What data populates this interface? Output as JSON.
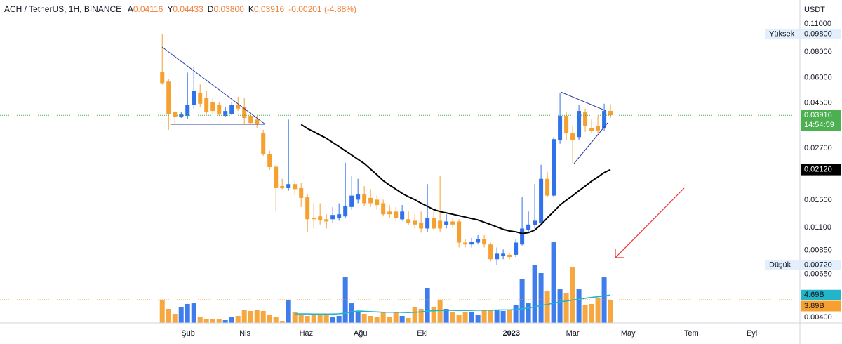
{
  "chart_data": {
    "type": "candlestick",
    "title": "ACH / TetherUS, 1H, BINANCE",
    "ohlc_legend": [
      {
        "label": "A",
        "value": "0.04116"
      },
      {
        "label": "Y",
        "value": "0.04433"
      },
      {
        "label": "D",
        "value": "0.03800"
      },
      {
        "label": "K",
        "value": "0.03916"
      }
    ],
    "change": "-0.00201 (-4.88%)",
    "legend_value_color": "#f0813a",
    "y_unit": "USDT",
    "log_scale": true,
    "grid": false,
    "up_color": "#2f72eb",
    "down_color": "#f5a02f",
    "x": [
      0,
      1,
      2,
      3,
      4,
      5,
      6,
      7,
      8,
      9,
      10,
      11,
      12,
      13,
      14,
      15,
      16,
      17,
      18,
      19,
      20,
      21,
      22,
      23,
      24,
      25,
      26,
      27,
      28,
      29,
      30,
      31,
      32,
      33,
      34,
      35,
      36,
      37,
      38,
      39,
      40,
      41,
      42,
      43,
      44,
      45,
      46,
      47,
      48,
      49,
      50,
      51,
      52,
      53,
      54,
      55,
      56,
      57,
      58,
      59,
      60,
      61,
      62,
      63,
      64,
      65,
      66,
      67,
      68,
      69,
      70,
      71
    ],
    "open": [
      0.064,
      0.0573,
      0.0405,
      0.0386,
      0.0389,
      0.0439,
      0.0502,
      0.0475,
      0.0453,
      0.0439,
      0.0389,
      0.0398,
      0.0439,
      0.0431,
      0.0389,
      0.0373,
      0.0319,
      0.0252,
      0.0219,
      0.0176,
      0.0172,
      0.018,
      0.0172,
      0.0155,
      0.0123,
      0.0125,
      0.0121,
      0.0121,
      0.0123,
      0.0125,
      0.0139,
      0.0151,
      0.016,
      0.0154,
      0.0151,
      0.0145,
      0.0132,
      0.0132,
      0.0121,
      0.0121,
      0.0119,
      0.0116,
      0.0109,
      0.0123,
      0.0119,
      0.0113,
      0.0118,
      0.0118,
      0.0093,
      0.0091,
      0.0093,
      0.0097,
      0.0091,
      0.0077,
      0.008,
      0.0081,
      0.0081,
      0.0091,
      0.0107,
      0.0113,
      0.0116,
      0.0191,
      0.0158,
      0.0296,
      0.0389,
      0.0319,
      0.0306,
      0.0405,
      0.034,
      0.0346,
      0.0337,
      0.04116
    ],
    "high": [
      0.098,
      0.0588,
      0.0411,
      0.0405,
      0.0634,
      0.0677,
      0.0555,
      0.0514,
      0.0475,
      0.0456,
      0.0431,
      0.0456,
      0.0482,
      0.0475,
      0.0405,
      0.0389,
      0.0332,
      0.0262,
      0.0224,
      0.0191,
      0.0373,
      0.0186,
      0.0183,
      0.016,
      0.0145,
      0.0145,
      0.0128,
      0.0139,
      0.0145,
      0.0229,
      0.0198,
      0.0191,
      0.0176,
      0.017,
      0.0158,
      0.0151,
      0.0142,
      0.0139,
      0.0142,
      0.0132,
      0.0128,
      0.0132,
      0.018,
      0.0132,
      0.0198,
      0.0128,
      0.0123,
      0.0121,
      0.0097,
      0.0098,
      0.0101,
      0.0101,
      0.0093,
      0.0088,
      0.0086,
      0.0083,
      0.0097,
      0.0155,
      0.0132,
      0.018,
      0.0224,
      0.0206,
      0.0306,
      0.0502,
      0.0405,
      0.0346,
      0.0439,
      0.0422,
      0.0373,
      0.0389,
      0.0446,
      0.04433
    ],
    "low": [
      0.0554,
      0.0332,
      0.0353,
      0.038,
      0.0375,
      0.0422,
      0.0431,
      0.0395,
      0.0398,
      0.0389,
      0.0383,
      0.0392,
      0.0411,
      0.0353,
      0.0353,
      0.034,
      0.0248,
      0.0211,
      0.0132,
      0.017,
      0.0167,
      0.016,
      0.0139,
      0.0105,
      0.0109,
      0.0114,
      0.0109,
      0.0116,
      0.0119,
      0.0123,
      0.0135,
      0.0145,
      0.0141,
      0.0139,
      0.0135,
      0.0125,
      0.0123,
      0.0119,
      0.0119,
      0.0113,
      0.0109,
      0.0104,
      0.0105,
      0.0107,
      0.0105,
      0.0109,
      0.011,
      0.0088,
      0.0088,
      0.0088,
      0.0091,
      0.0088,
      0.0075,
      0.0072,
      0.0077,
      0.0077,
      0.0079,
      0.009,
      0.0105,
      0.0109,
      0.0114,
      0.0155,
      0.0155,
      0.0284,
      0.0296,
      0.0229,
      0.0296,
      0.0325,
      0.0319,
      0.0319,
      0.0328,
      0.038
    ],
    "close": [
      0.0563,
      0.0398,
      0.0386,
      0.0395,
      0.0439,
      0.0514,
      0.0446,
      0.0405,
      0.0411,
      0.0398,
      0.0411,
      0.0439,
      0.0422,
      0.038,
      0.0359,
      0.0353,
      0.0252,
      0.0218,
      0.0172,
      0.0172,
      0.018,
      0.017,
      0.0154,
      0.0121,
      0.0121,
      0.012,
      0.0118,
      0.0127,
      0.0128,
      0.0141,
      0.0158,
      0.016,
      0.0145,
      0.0145,
      0.0142,
      0.0128,
      0.0128,
      0.0123,
      0.0132,
      0.0116,
      0.0114,
      0.0109,
      0.0123,
      0.0109,
      0.0109,
      0.0118,
      0.0114,
      0.0093,
      0.0091,
      0.0094,
      0.0097,
      0.0091,
      0.0077,
      0.0082,
      0.0082,
      0.0079,
      0.0093,
      0.0109,
      0.0114,
      0.0119,
      0.0191,
      0.0158,
      0.0299,
      0.0389,
      0.0319,
      0.0296,
      0.0411,
      0.0346,
      0.0328,
      0.033,
      0.0411,
      0.03916
    ],
    "xlim": [
      -25.7,
      101
    ],
    "xticks": [
      {
        "value": 4.1,
        "label": "Şub"
      },
      {
        "value": 13.1,
        "label": "Nis"
      },
      {
        "value": 22.8,
        "label": "Haz"
      },
      {
        "value": 31.4,
        "label": "Ağu"
      },
      {
        "value": 41.2,
        "label": "Eki"
      },
      {
        "value": 55.3,
        "label": "2023",
        "bold": true
      },
      {
        "value": 65,
        "label": "Mar"
      },
      {
        "value": 73.8,
        "label": "May"
      },
      {
        "value": 83.8,
        "label": "Tem"
      },
      {
        "value": 93.4,
        "label": "Eyl"
      }
    ],
    "ylim": [
      0.00375,
      0.144
    ],
    "yticks": [
      {
        "value": 0.11,
        "label": "0.11000"
      },
      {
        "value": 0.08,
        "label": "0.08000"
      },
      {
        "value": 0.06,
        "label": "0.06000"
      },
      {
        "value": 0.045,
        "label": "0.04500"
      },
      {
        "value": 0.027,
        "label": "0.02700"
      },
      {
        "value": 0.015,
        "label": "0.01500"
      },
      {
        "value": 0.011,
        "label": "0.01100"
      },
      {
        "value": 0.0085,
        "label": "0.00850"
      },
      {
        "value": 0.0065,
        "label": "0.00650"
      },
      {
        "value": 0.004,
        "label": "0.00400"
      }
    ],
    "high_marker": {
      "name": "Yüksek",
      "value": 0.098,
      "label": "0.09800"
    },
    "low_marker": {
      "name": "Düşük",
      "value": 0.0072,
      "label": "0.00720"
    },
    "last_price": {
      "label": "0.03916",
      "countdown": "14:54:59",
      "color": "#4caf50"
    },
    "ma": {
      "color": "#000000",
      "last_label": "0.02120",
      "values": [
        null,
        null,
        null,
        null,
        null,
        null,
        null,
        null,
        null,
        null,
        null,
        null,
        null,
        null,
        null,
        null,
        null,
        null,
        null,
        null,
        null,
        null,
        0.0353,
        0.0337,
        0.0325,
        0.0313,
        0.0302,
        0.0288,
        0.0275,
        0.0262,
        0.025,
        0.0238,
        0.0227,
        0.0213,
        0.02,
        0.0187,
        0.0178,
        0.017,
        0.0162,
        0.0156,
        0.0151,
        0.0145,
        0.014,
        0.0135,
        0.0132,
        0.013,
        0.0128,
        0.0126,
        0.0124,
        0.0122,
        0.012,
        0.0117,
        0.0114,
        0.0111,
        0.0108,
        0.0106,
        0.0105,
        0.0103,
        0.0104,
        0.0107,
        0.0114,
        0.0123,
        0.0132,
        0.0142,
        0.015,
        0.0158,
        0.0167,
        0.0176,
        0.0186,
        0.0195,
        0.0205,
        0.0212
      ]
    },
    "volume": {
      "lim": [
        0,
        54.3
      ],
      "last_label": "3.89B",
      "values": [
        3.89,
        2.36,
        1.53,
        2.71,
        3.19,
        3.3,
        0.94,
        0.71,
        0.71,
        0.59,
        0.47,
        0.94,
        1.18,
        2.24,
        2.01,
        2.24,
        2.01,
        1.42,
        0.94,
        0.35,
        3.89,
        1.77,
        1.42,
        1.18,
        1.53,
        1.53,
        1.3,
        0.94,
        1.18,
        7.67,
        3.3,
        2.01,
        1.53,
        1.18,
        0.94,
        1.77,
        1.06,
        1.77,
        1.18,
        0.83,
        2.71,
        2.36,
        5.9,
        2.71,
        3.89,
        2.36,
        1.89,
        1.42,
        1.77,
        1.89,
        1.42,
        2.12,
        2.24,
        2.12,
        2.01,
        2.24,
        3.07,
        7.32,
        3.3,
        9.68,
        8.38,
        5.31,
        13.57,
        5.66,
        4.96,
        9.44,
        5.66,
        2.95,
        3.19,
        4.13,
        7.67,
        3.89
      ]
    },
    "volume_ma": {
      "color": "#22b5c8",
      "last_label": "4.69B",
      "values": [
        null,
        null,
        null,
        null,
        null,
        null,
        null,
        null,
        null,
        null,
        null,
        null,
        null,
        null,
        null,
        null,
        null,
        null,
        null,
        null,
        null,
        1.53,
        1.53,
        1.53,
        1.5,
        1.5,
        1.5,
        1.5,
        1.55,
        1.65,
        1.9,
        2.0,
        1.95,
        1.9,
        1.85,
        1.8,
        1.8,
        1.8,
        1.78,
        1.75,
        1.8,
        1.85,
        2.0,
        2.05,
        2.1,
        2.12,
        2.12,
        2.1,
        2.1,
        2.12,
        2.15,
        2.15,
        2.15,
        2.18,
        2.2,
        2.2,
        2.25,
        2.4,
        2.5,
        2.7,
        2.95,
        3.1,
        3.35,
        3.55,
        3.7,
        3.85,
        4.0,
        4.15,
        4.3,
        4.4,
        4.55,
        4.69
      ]
    }
  }
}
